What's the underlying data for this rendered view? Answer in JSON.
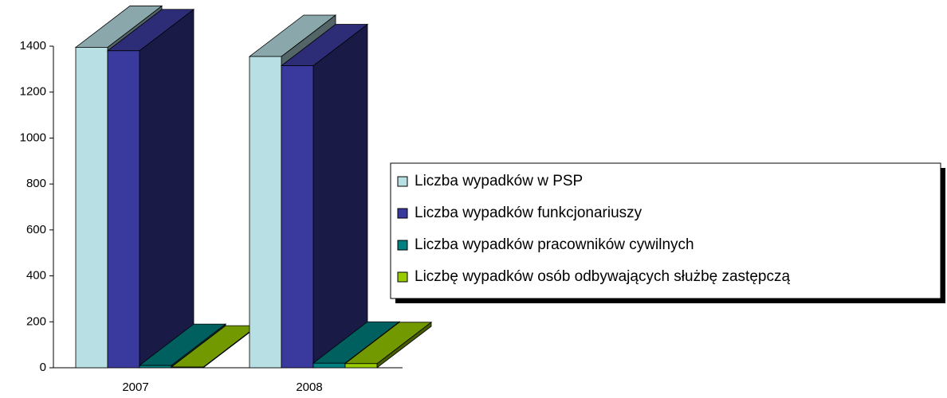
{
  "chart_data": {
    "type": "bar3d",
    "categories": [
      "2007",
      "2008"
    ],
    "series": [
      {
        "name": "Liczba wypadków w PSP",
        "color": "#b8e0e4",
        "values": [
          1395,
          1355
        ]
      },
      {
        "name": "Liczba wypadków funkcjonariuszy",
        "color": "#3a3a9e",
        "values": [
          1380,
          1315
        ]
      },
      {
        "name": "Liczba wypadków pracowników cywilnych",
        "color": "#008080",
        "values": [
          10,
          20
        ]
      },
      {
        "name": "Liczbę wypadków osób odbywających służbę zastępczą",
        "color": "#99cc00",
        "values": [
          3,
          18
        ]
      }
    ],
    "ylim": [
      0,
      1400
    ],
    "yticks": [
      0,
      200,
      400,
      600,
      800,
      1000,
      1200,
      1400
    ],
    "grid": false,
    "legend": "right"
  }
}
